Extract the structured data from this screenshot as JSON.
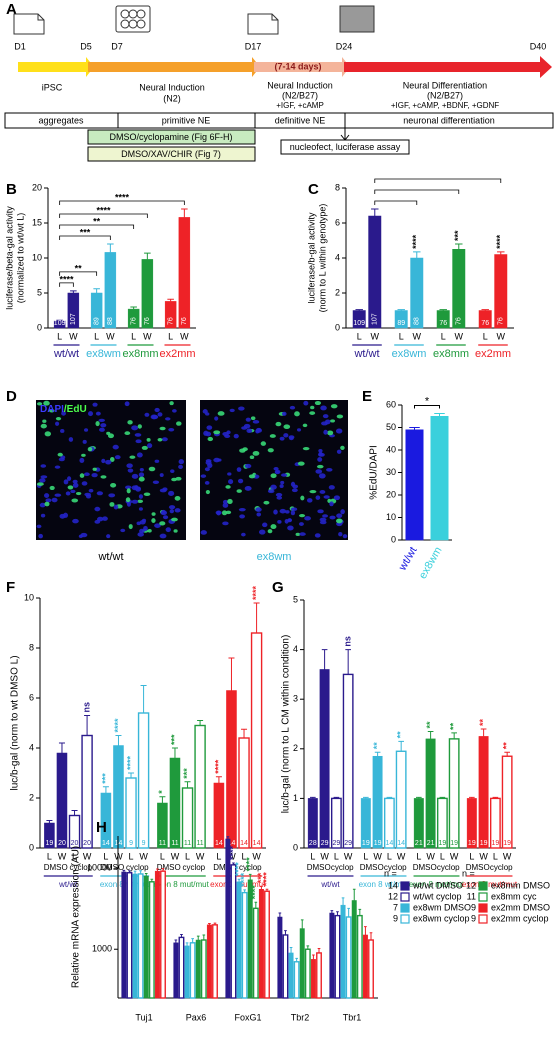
{
  "panels": [
    "A",
    "D"
  ],
  "timeline": {
    "days": [
      "D1",
      "D5",
      "D7",
      "D17",
      "D24",
      "D40"
    ],
    "stages": [
      {
        "title": "iPSC"
      },
      {
        "title": "Neural Induction",
        "medium": "(N2)"
      },
      {
        "duration": "(7-14 days)",
        "title": "Neural Induction",
        "medium": "(N2/B27)",
        "factors": "+IGF, +cAMP"
      },
      {
        "title": "Neural Differentiation",
        "medium": "(N2/B27)",
        "factors": "+IGF, +cAMP, +BDNF, +GDNF"
      }
    ],
    "phases": [
      "aggregates",
      "primitive NE",
      "definitive NE",
      "neuronal differentiation"
    ],
    "treatments": [
      "DMSO/cyclopamine (Fig 6F-H)",
      "DMSO/XAV/CHIR (Fig 7)"
    ],
    "assay": "nucleofect, luciferase assay"
  },
  "panel_d": {
    "stain": [
      "DAPI",
      "/EdU"
    ],
    "images": [
      "wt/wt",
      "ex8wm"
    ]
  },
  "chart_data": [
    {
      "panel": "B",
      "type": "bar",
      "ylabel": [
        "luciferase/beta-gal activity",
        "(normalized to wt/wt L)"
      ],
      "groups": [
        {
          "name": "wt/wt",
          "color": "#2a1a8c"
        },
        {
          "name": "ex8wm",
          "color": "#38b6d8"
        },
        {
          "name": "ex8mm",
          "color": "#1f9a3c"
        },
        {
          "name": "ex2mm",
          "color": "#ee2227"
        }
      ],
      "categories": [
        "L",
        "W",
        "L",
        "W",
        "L",
        "W",
        "L",
        "W"
      ],
      "values": [
        1,
        5,
        5,
        10.8,
        2.7,
        9.8,
        3.8,
        15.8
      ],
      "errors": [
        0.1,
        0.3,
        0.6,
        1.2,
        0.3,
        0.9,
        0.3,
        1.2
      ],
      "n": [
        109,
        107,
        89,
        88,
        76,
        76,
        76,
        76
      ],
      "significance": [
        null,
        "****",
        "**",
        "***",
        "**",
        "****",
        null,
        "****"
      ],
      "ylim": [
        0,
        20
      ],
      "yticks": [
        0,
        5,
        10,
        15,
        20
      ]
    },
    {
      "panel": "C",
      "type": "bar",
      "ylabel": [
        "luciferase/b-gal activity",
        "(norm to L within genotype)"
      ],
      "groups": [
        {
          "name": "wt/wt",
          "color": "#2a1a8c"
        },
        {
          "name": "ex8wm",
          "color": "#38b6d8"
        },
        {
          "name": "ex8mm",
          "color": "#1f9a3c"
        },
        {
          "name": "ex2mm",
          "color": "#ee2227"
        }
      ],
      "categories": [
        "L",
        "W",
        "L",
        "W",
        "L",
        "W",
        "L",
        "W"
      ],
      "values": [
        1,
        6.4,
        1,
        4.0,
        1,
        4.5,
        1,
        4.2
      ],
      "errors": [
        0.05,
        0.4,
        0.05,
        0.35,
        0.05,
        0.3,
        0.05,
        0.15
      ],
      "n": [
        109,
        107,
        89,
        88,
        76,
        76,
        76,
        76
      ],
      "significance": [
        null,
        null,
        null,
        "****",
        null,
        "***",
        null,
        "****"
      ],
      "ylim": [
        0,
        8
      ],
      "yticks": [
        0,
        2,
        4,
        6,
        8
      ]
    },
    {
      "panel": "E",
      "type": "bar",
      "ylabel": [
        "%EdU/DAPI"
      ],
      "categories": [
        "wt/wt",
        "ex8wm"
      ],
      "colors": [
        "#1a1ae0",
        "#3ad0dc"
      ],
      "values": [
        49,
        55
      ],
      "errors": [
        1,
        1.2
      ],
      "significance": "*",
      "ylim": [
        0,
        60
      ],
      "yticks": [
        0,
        10,
        20,
        30,
        40,
        50,
        60
      ]
    },
    {
      "panel": "F",
      "type": "bar",
      "ylabel": [
        "luc/b-gal (norm to wt DMSO L)"
      ],
      "groups": [
        {
          "name": "wt/wt",
          "color": "#2a1a8c"
        },
        {
          "name": "exon 8 wt/mut",
          "color": "#38b6d8"
        },
        {
          "name": "exon 8 mut/mut",
          "color": "#1f9a3c"
        },
        {
          "name": "exon 2 mut/mut",
          "color": "#ee2227"
        }
      ],
      "categories": [
        "L",
        "W",
        "L",
        "W",
        "L",
        "W",
        "L",
        "W",
        "L",
        "W",
        "L",
        "W",
        "L",
        "W",
        "L",
        "W"
      ],
      "conditions": [
        "DMSO",
        "cyclop",
        "DMSO",
        "cyclop",
        "DMSO",
        "cyclop",
        "DMSO",
        "cyclop"
      ],
      "styles": [
        "filled",
        "filled",
        "open",
        "open",
        "filled",
        "filled",
        "open",
        "open",
        "filled",
        "filled",
        "open",
        "open",
        "filled",
        "filled",
        "open",
        "open"
      ],
      "values": [
        1.0,
        3.8,
        1.3,
        4.5,
        2.2,
        4.1,
        2.8,
        5.4,
        1.8,
        3.6,
        2.4,
        4.9,
        2.6,
        6.3,
        4.4,
        8.6
      ],
      "errors": [
        0.1,
        0.4,
        0.2,
        0.8,
        0.25,
        0.4,
        0.2,
        1.1,
        0.25,
        0.4,
        0.25,
        0.2,
        0.25,
        1.3,
        0.35,
        1.2
      ],
      "n": [
        19,
        20,
        20,
        20,
        14,
        14,
        9,
        9,
        11,
        11,
        11,
        11,
        14,
        14,
        14,
        14
      ],
      "significance": [
        null,
        null,
        null,
        "ns",
        "***",
        "****",
        "****",
        null,
        "*",
        "***",
        "***",
        null,
        "****",
        null,
        null,
        "****"
      ],
      "ylim": [
        0,
        10
      ],
      "yticks": [
        0,
        2,
        4,
        6,
        8,
        10
      ]
    },
    {
      "panel": "G",
      "type": "bar",
      "ylabel": [
        "luc/b-gal (norm to L CM within condition)"
      ],
      "groups": [
        {
          "name": "wt/wt",
          "color": "#2a1a8c"
        },
        {
          "name": "exon 8 wt/mut",
          "color": "#38b6d8"
        },
        {
          "name": "exon 8 mut/mut",
          "color": "#1f9a3c"
        },
        {
          "name": "exon 2 mut/mut",
          "color": "#ee2227"
        }
      ],
      "categories": [
        "L",
        "W",
        "L",
        "W",
        "L",
        "W",
        "L",
        "W",
        "L",
        "W",
        "L",
        "W",
        "L",
        "W",
        "L",
        "W"
      ],
      "conditions": [
        "DMSO",
        "cyclop",
        "DMSO",
        "cyclop",
        "DMSO",
        "cyclop",
        "DMSO",
        "cyclop"
      ],
      "styles": [
        "filled",
        "filled",
        "open",
        "open",
        "filled",
        "filled",
        "open",
        "open",
        "filled",
        "filled",
        "open",
        "open",
        "filled",
        "filled",
        "open",
        "open"
      ],
      "values": [
        1,
        3.6,
        1,
        3.5,
        1,
        1.85,
        1,
        1.95,
        1,
        2.2,
        1,
        2.2,
        1,
        2.25,
        1,
        1.85
      ],
      "errors": [
        0.02,
        0.4,
        0.02,
        0.5,
        0.02,
        0.08,
        0.02,
        0.2,
        0.02,
        0.15,
        0.02,
        0.12,
        0.02,
        0.15,
        0.02,
        0.08
      ],
      "n": [
        28,
        29,
        29,
        29,
        19,
        19,
        14,
        14,
        21,
        21,
        19,
        19,
        19,
        19,
        19,
        19
      ],
      "significance": [
        null,
        null,
        null,
        "ns",
        null,
        "**",
        null,
        "**",
        null,
        "**",
        null,
        "**",
        null,
        "**",
        null,
        "**"
      ],
      "ylim": [
        0,
        5
      ],
      "yticks": [
        0,
        1,
        2,
        3,
        4,
        5
      ]
    },
    {
      "panel": "H",
      "type": "bar",
      "log": true,
      "ylabel": [
        "Relative mRNA expression (AU)"
      ],
      "categories": [
        "Tuj1",
        "Pax6",
        "FoxG1",
        "Tbr2",
        "Tbr1"
      ],
      "legend_title": "n =",
      "series": [
        {
          "name": "wt/wt DMSO",
          "color": "#2a1a8c",
          "fill": "filled",
          "n": 14,
          "values": [
            9000,
            1200,
            23000,
            2500,
            2800
          ],
          "errors": [
            400,
            100,
            1500,
            300,
            200
          ]
        },
        {
          "name": "wt/wt cyclop",
          "color": "#2a1a8c",
          "fill": "open",
          "n": 12,
          "values": [
            8800,
            1400,
            11000,
            1500,
            2600
          ],
          "errors": [
            500,
            120,
            600,
            200,
            300
          ],
          "significance": [
            null,
            null,
            "****",
            null,
            null
          ]
        },
        {
          "name": "ex8wm DMSO",
          "color": "#38b6d8",
          "fill": "filled",
          "n": 7,
          "values": [
            8500,
            1100,
            6800,
            900,
            3500
          ],
          "errors": [
            700,
            100,
            500,
            150,
            800
          ],
          "significance": [
            null,
            null,
            "****",
            null,
            null
          ]
        },
        {
          "name": "ex8wm cyclop",
          "color": "#38b6d8",
          "fill": "open",
          "n": 9,
          "values": [
            8500,
            1200,
            5000,
            700,
            2500
          ],
          "errors": [
            800,
            150,
            400,
            70,
            700
          ],
          "significance": [
            null,
            null,
            "****",
            null,
            null
          ]
        },
        {
          "name": "ex8mm DMSO",
          "color": "#1f9a3c",
          "fill": "filled",
          "n": 12,
          "values": [
            8000,
            1300,
            7200,
            1800,
            4000
          ],
          "errors": [
            600,
            150,
            1200,
            500,
            1500
          ],
          "significance": [
            null,
            null,
            "****",
            null,
            null
          ]
        },
        {
          "name": "ex8mm cyc",
          "color": "#1f9a3c",
          "fill": "open",
          "n": 11,
          "values": [
            6800,
            1300,
            3200,
            1000,
            2600
          ],
          "errors": [
            500,
            200,
            600,
            100,
            500
          ],
          "significance": [
            null,
            null,
            "****",
            null,
            null
          ]
        },
        {
          "name": "ex2mm DMSO",
          "color": "#ee2227",
          "fill": "filled",
          "n": 9,
          "values": [
            9200,
            2000,
            5500,
            750,
            1500
          ],
          "errors": [
            600,
            80,
            500,
            100,
            400
          ],
          "significance": [
            null,
            null,
            "***",
            null,
            null
          ]
        },
        {
          "name": "ex2mm cyclop",
          "color": "#ee2227",
          "fill": "open",
          "n": 9,
          "values": [
            9200,
            2000,
            5200,
            900,
            1300
          ],
          "errors": [
            700,
            100,
            300,
            120,
            300
          ],
          "significance": [
            null,
            null,
            "****",
            null,
            null
          ]
        }
      ],
      "ylim": [
        250,
        25000
      ],
      "yticks": [
        1000,
        10000
      ]
    }
  ]
}
